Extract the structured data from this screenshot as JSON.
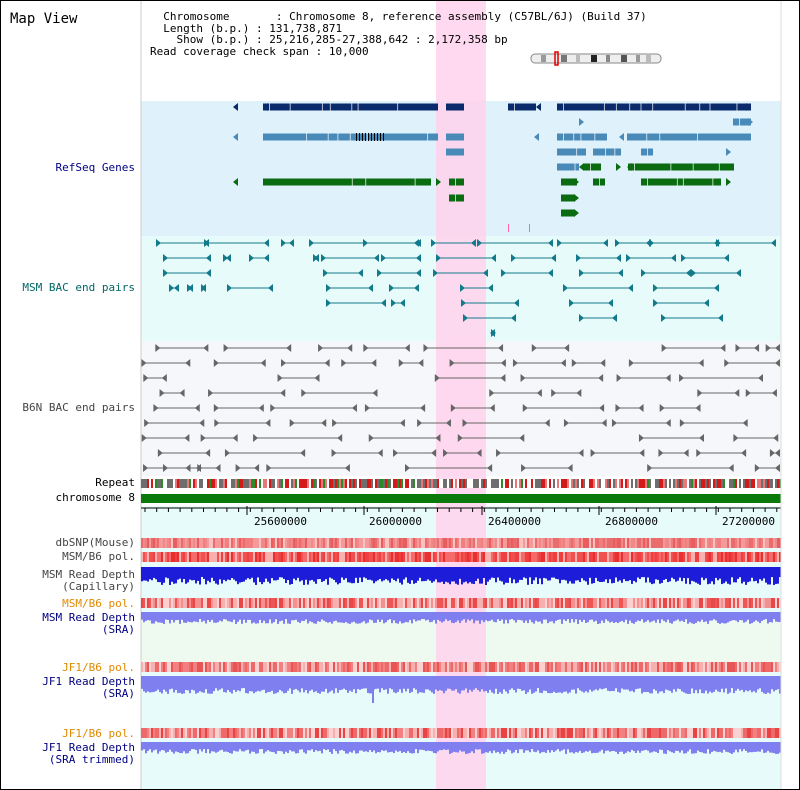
{
  "page": {
    "title": "Map View"
  },
  "info": {
    "chromosome_key": "Chromosome",
    "chromosome_value": "Chromosome 8, reference assembly (C57BL/6J) (Build 37)",
    "length_key": "Length (b.p.)",
    "length_value": "131,738,871",
    "show_key": "Show (b.p.)",
    "show_value": "25,216,285-27,388,642 : 2,172,358 bp",
    "coverage_key": "Read coverage check span",
    "coverage_value": "10,000"
  },
  "tracks": {
    "refseq": "RefSeq Genes",
    "msm_bac": "MSM BAC end pairs",
    "b6n_bac": "B6N BAC end pairs",
    "repeat": "Repeat",
    "chromosome": "chromosome 8",
    "dbsnp": "dbSNP(Mouse)",
    "msm_b6_pol": "MSM/B6 pol.",
    "msm_depth_cap_1": "MSM Read Depth",
    "msm_depth_cap_2": "(Capillary)",
    "msm_b6_pol_2": "MSM/B6 pol.",
    "msm_depth_sra_1": "MSM Read Depth",
    "msm_depth_sra_2": "(SRA)",
    "jf1_b6_pol": "JF1/B6 pol.",
    "jf1_depth_sra_1": "JF1 Read Depth",
    "jf1_depth_sra_2": "(SRA)",
    "jf1_b6_pol_2": "JF1/B6 pol.",
    "jf1_depth_trim_1": "JF1 Read Depth",
    "jf1_depth_trim_2": "(SRA trimmed)"
  },
  "axis": {
    "ticks": [
      "25600000",
      "26000000",
      "26400000",
      "26800000",
      "27200000"
    ]
  },
  "colors": {
    "refseq_bg": "#dff1fb",
    "bac_bg": "#e8fbfb",
    "b6n_bg": "#f5f7fa",
    "lower_bg": "#e8fbfb",
    "highlight": "#ffd2ec",
    "gene_dark": "#0a2a6b",
    "gene_mid": "#4a8ab8",
    "gene_green": "#0b6b11",
    "chrom_green": "#0a7a0a",
    "depth_blue": "#1c1cd9",
    "depth_light": "#7f7ff0"
  },
  "icons": {
    "ideogram": "chromosome-ideogram-icon"
  }
}
